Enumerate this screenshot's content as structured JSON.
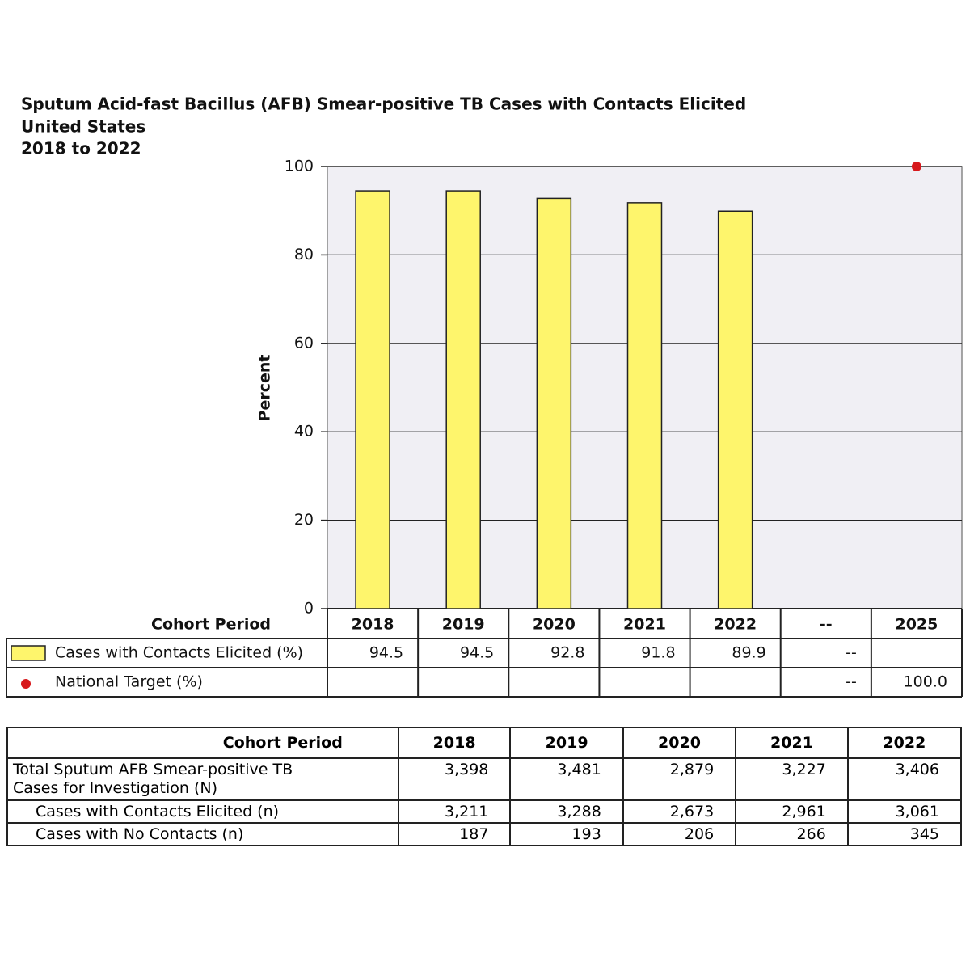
{
  "chart_data": {
    "type": "bar",
    "title": "Sputum Acid-fast Bacillus (AFB) Smear-positive TB Cases with Contacts Elicited",
    "subtitle": [
      "United States",
      "2018 to 2022"
    ],
    "y_label": "Percent",
    "x_label": "Cohort Period",
    "categories": [
      "2018",
      "2019",
      "2020",
      "2021",
      "2022",
      "--",
      "2025"
    ],
    "series": [
      {
        "name": "Cases with Contacts Elicited (%)",
        "type": "bar",
        "color": "#fef56c",
        "values": [
          94.5,
          94.5,
          92.8,
          91.8,
          89.9,
          null,
          null
        ],
        "value_labels": [
          "94.5",
          "94.5",
          "92.8",
          "91.8",
          "89.9",
          "--",
          null
        ]
      },
      {
        "name": "National Target (%)",
        "type": "point",
        "color": "#d7191c",
        "values": [
          null,
          null,
          null,
          null,
          null,
          null,
          100
        ],
        "value_labels": [
          null,
          null,
          null,
          null,
          null,
          "--",
          "100.0"
        ]
      }
    ],
    "ylim": [
      0,
      100
    ],
    "yticks": [
      0,
      20,
      40,
      60,
      80,
      100
    ],
    "grid": true
  },
  "table": {
    "header": [
      "Cohort Period",
      "2018",
      "2019",
      "2020",
      "2021",
      "2022"
    ],
    "rows": [
      [
        "Total Sputum AFB Smear-positive TB Cases for Investigation (N)",
        "3,398",
        "3,481",
        "2,879",
        "3,227",
        "3,406"
      ],
      [
        "Cases with Contacts Elicited (n)",
        "3,211",
        "3,288",
        "2,673",
        "2,961",
        "3,061"
      ],
      [
        "Cases with No Contacts (n)",
        "187",
        "193",
        "206",
        "266",
        "345"
      ]
    ]
  }
}
